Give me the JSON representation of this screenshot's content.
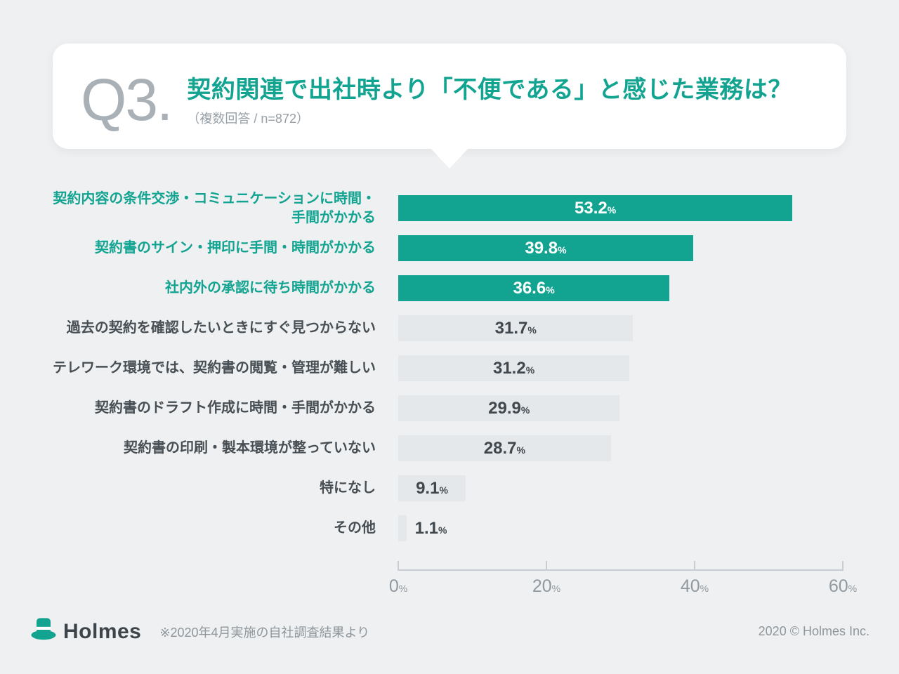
{
  "header": {
    "question_no": "Q3.",
    "title": "契約関連で出社時より「不便である」と感じた業務は？",
    "subtitle": "（複数回答 / n=872）"
  },
  "chart_data": {
    "type": "bar",
    "orientation": "horizontal",
    "title": "契約関連で出社時より「不便である」と感じた業務は？",
    "unit": "%",
    "xlim": [
      0,
      60
    ],
    "x_ticks": [
      0,
      20,
      40,
      60
    ],
    "grid": false,
    "legend": false,
    "categories": [
      "契約内容の条件交渉・コミュニケーションに時間・手間がかかる",
      "契約書のサイン・押印に手間・時間がかかる",
      "社内外の承認に待ち時間がかかる",
      "過去の契約を確認したいときにすぐ見つからない",
      "テレワーク環境では、契約書の閲覧・管理が難しい",
      "契約書のドラフト作成に時間・手間がかかる",
      "契約書の印刷・製本環境が整っていない",
      "特になし",
      "その他"
    ],
    "values": [
      53.2,
      39.8,
      36.6,
      31.7,
      31.2,
      29.9,
      28.7,
      9.1,
      1.1
    ],
    "highlighted_rows": 3,
    "colors": {
      "highlight_bar": "#12a491",
      "default_bar": "#e5e8eb",
      "value_on_highlight": "#ffffff",
      "value_on_default": "#40484e"
    }
  },
  "footer": {
    "brand": "Holmes",
    "logo_icon": "top-hat-icon",
    "note": "※2020年4月実施の自社調査結果より",
    "copyright": "2020 © Holmes Inc."
  }
}
